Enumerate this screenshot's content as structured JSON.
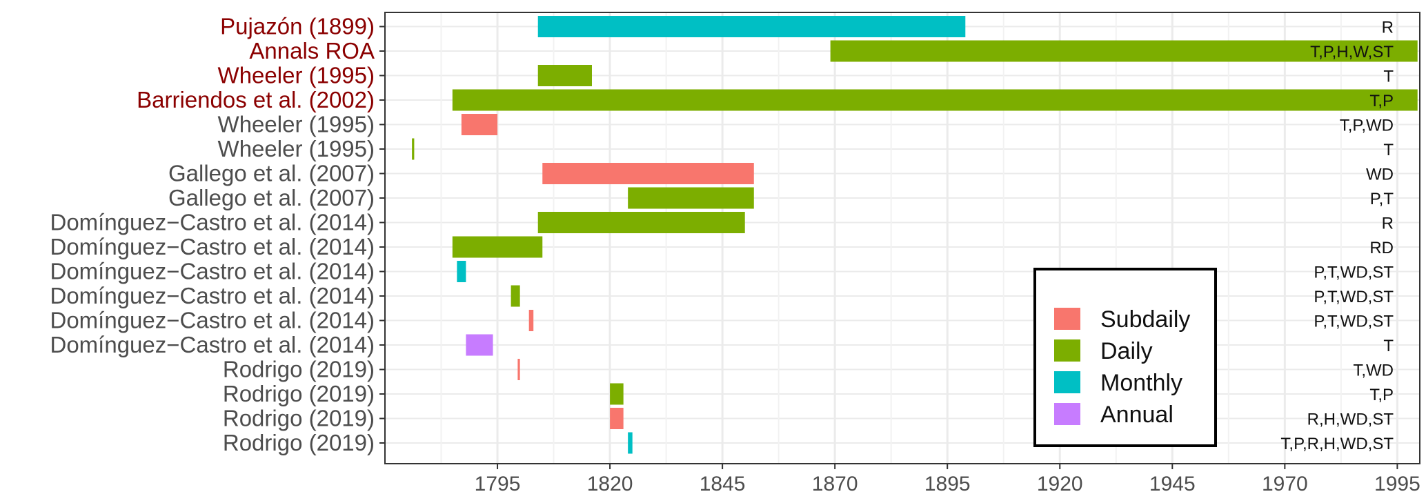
{
  "chart_data": {
    "type": "timeline",
    "title": "",
    "xlabel": "",
    "ylabel": "",
    "xlim": [
      1770,
      2000
    ],
    "x_ticks": [
      1795,
      1820,
      1845,
      1870,
      1895,
      1920,
      1945,
      1970,
      1995
    ],
    "grid": true,
    "legend_position": "bottom-right",
    "colors": {
      "Subdaily": "#F8766D",
      "Daily": "#7CAE00",
      "Monthly": "#00BFC4",
      "Annual": "#C77CFF",
      "highlight_label": "#8B0000",
      "normal_label": "#4d4d4d"
    },
    "legend": [
      "Subdaily",
      "Daily",
      "Monthly",
      "Annual"
    ],
    "rows": [
      {
        "label": "Pujazón (1899)",
        "highlight": true,
        "resolution": "Monthly",
        "start": 1804,
        "end": 1899,
        "vars": "R"
      },
      {
        "label": "Annals ROA",
        "highlight": true,
        "resolution": "Daily",
        "start": 1869,
        "end": 1999.5,
        "vars": "T,P,H,W,ST"
      },
      {
        "label": "Wheeler (1995)",
        "highlight": true,
        "resolution": "Daily",
        "start": 1804,
        "end": 1816,
        "vars": "T"
      },
      {
        "label": "Barriendos et al. (2002)",
        "highlight": true,
        "resolution": "Daily",
        "start": 1785,
        "end": 1999.5,
        "vars": "T,P"
      },
      {
        "label": "Wheeler (1995)",
        "highlight": false,
        "resolution": "Subdaily",
        "start": 1787,
        "end": 1795,
        "vars": "T,P,WD"
      },
      {
        "label": "Wheeler (1995)",
        "highlight": false,
        "resolution": "Daily",
        "start": 1776,
        "end": 1776.5,
        "vars": "T"
      },
      {
        "label": "Gallego et al. (2007)",
        "highlight": false,
        "resolution": "Subdaily",
        "start": 1805,
        "end": 1852,
        "vars": "WD"
      },
      {
        "label": "Gallego et al. (2007)",
        "highlight": false,
        "resolution": "Daily",
        "start": 1824,
        "end": 1852,
        "vars": "P,T"
      },
      {
        "label": "Domínguez−Castro et al. (2014)",
        "highlight": false,
        "resolution": "Daily",
        "start": 1804,
        "end": 1850,
        "vars": "R"
      },
      {
        "label": "Domínguez−Castro et al. (2014)",
        "highlight": false,
        "resolution": "Daily",
        "start": 1785,
        "end": 1805,
        "vars": "RD"
      },
      {
        "label": "Domínguez−Castro et al. (2014)",
        "highlight": false,
        "resolution": "Monthly",
        "start": 1786,
        "end": 1788,
        "vars": "P,T,WD,ST"
      },
      {
        "label": "Domínguez−Castro et al. (2014)",
        "highlight": false,
        "resolution": "Daily",
        "start": 1798,
        "end": 1800,
        "vars": "P,T,WD,ST"
      },
      {
        "label": "Domínguez−Castro et al. (2014)",
        "highlight": false,
        "resolution": "Subdaily",
        "start": 1802,
        "end": 1803,
        "vars": "P,T,WD,ST"
      },
      {
        "label": "Domínguez−Castro et al. (2014)",
        "highlight": false,
        "resolution": "Annual",
        "start": 1788,
        "end": 1794,
        "vars": "T"
      },
      {
        "label": "Rodrigo (2019)",
        "highlight": false,
        "resolution": "Subdaily",
        "start": 1799.5,
        "end": 1800,
        "vars": "T,WD"
      },
      {
        "label": "Rodrigo (2019)",
        "highlight": false,
        "resolution": "Daily",
        "start": 1820,
        "end": 1823,
        "vars": "T,P"
      },
      {
        "label": "Rodrigo (2019)",
        "highlight": false,
        "resolution": "Subdaily",
        "start": 1820,
        "end": 1823,
        "vars": "R,H,WD,ST"
      },
      {
        "label": "Rodrigo (2019)",
        "highlight": false,
        "resolution": "Monthly",
        "start": 1824,
        "end": 1825,
        "vars": "T,P,R,H,WD,ST"
      }
    ]
  }
}
